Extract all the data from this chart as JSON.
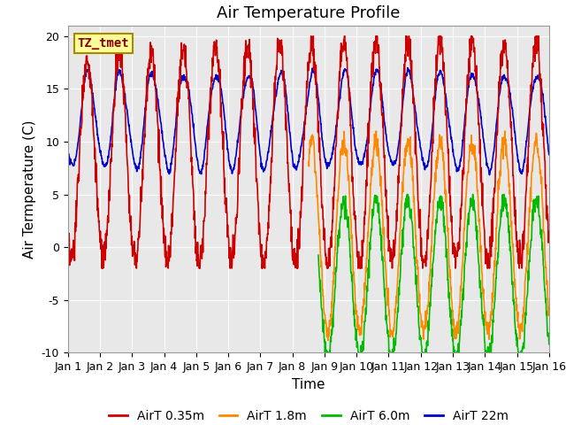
{
  "title": "Air Temperature Profile",
  "xlabel": "Time",
  "ylabel": "Air Termperature (C)",
  "ylim": [
    -10,
    21
  ],
  "xlim": [
    0,
    15
  ],
  "xtick_labels": [
    "Jan 1",
    "Jan 2",
    "Jan 3",
    "Jan 4",
    "Jan 5",
    "Jan 6",
    "Jan 7",
    "Jan 8",
    "Jan 9",
    "Jan 10",
    "Jan 11",
    "Jan 12",
    "Jan 13",
    "Jan 14",
    "Jan 15",
    "Jan 16"
  ],
  "ytick_vals": [
    -10,
    -5,
    0,
    5,
    10,
    15,
    20
  ],
  "legend_labels": [
    "AirT 0.35m",
    "AirT 1.8m",
    "AirT 6.0m",
    "AirT 22m"
  ],
  "colors": [
    "#cc0000",
    "#ff8800",
    "#00bb00",
    "#0000cc"
  ],
  "annotation_text": "TZ_tmet",
  "annotation_bg": "#ffff99",
  "annotation_border": "#aa8800",
  "background_color": "#e8e8e8",
  "title_fontsize": 13,
  "axis_fontsize": 11,
  "tick_fontsize": 9,
  "legend_fontsize": 10,
  "linewidth": 1.2
}
